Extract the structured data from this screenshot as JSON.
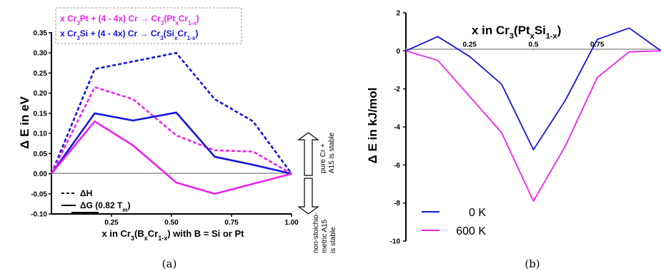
{
  "chart_data": [
    {
      "type": "line",
      "panel": "(a)",
      "ylabel": "Δ E in eV",
      "xlabel": "x in Cr3(BxCr1-x) with B = Si or Pt",
      "xlim": [
        0,
        1
      ],
      "ylim": [
        -0.1,
        0.35
      ],
      "x_ticks": [
        "0.25",
        "0.50",
        "0.75",
        "1.00"
      ],
      "y_ticks": [
        "-0.10",
        "-0.05",
        "0.00",
        "0.05",
        "0.10",
        "0.15",
        "0.20",
        "0.25",
        "0.30",
        "0.35"
      ],
      "legend_box": [
        {
          "text": "x Cr3Pt + (4 - 4x) Cr → Cr3(PtxCr1-x)",
          "color": "#ee22ee"
        },
        {
          "text": "x Cr3Si + (4 - 4x) Cr → Cr3(SixCr1-x)",
          "color": "#1515dd"
        }
      ],
      "legend_style": [
        {
          "text": "ΔH",
          "style": "dashed"
        },
        {
          "text": "ΔG (0.82 Tm)",
          "style": "solid"
        }
      ],
      "side_label_top": [
        "pure Cr +",
        "A15 is stable"
      ],
      "side_label_bottom": [
        "non-stoichio-",
        "metric A15",
        "is stable"
      ],
      "series": [
        {
          "color": "#1515dd",
          "style": "dashed",
          "x": [
            0,
            0.18,
            0.52,
            0.68,
            0.84,
            1.0
          ],
          "y": [
            0,
            0.26,
            0.3,
            0.185,
            0.13,
            0
          ]
        },
        {
          "color": "#ee22ee",
          "style": "dashed",
          "x": [
            0,
            0.18,
            0.34,
            0.52,
            0.68,
            0.84,
            1.0
          ],
          "y": [
            0,
            0.215,
            0.185,
            0.095,
            0.058,
            0.055,
            0
          ]
        },
        {
          "color": "#1515dd",
          "style": "solid",
          "x": [
            0,
            0.18,
            0.34,
            0.52,
            0.68,
            0.84,
            1.0
          ],
          "y": [
            0,
            0.15,
            0.132,
            0.152,
            0.042,
            0.022,
            0
          ]
        },
        {
          "color": "#ee22ee",
          "style": "solid",
          "x": [
            0,
            0.18,
            0.34,
            0.52,
            0.68,
            1.0
          ],
          "y": [
            0,
            0.13,
            0.07,
            -0.022,
            -0.05,
            0
          ]
        }
      ]
    },
    {
      "type": "line",
      "panel": "(b)",
      "ylabel": "Δ E in kJ/mol",
      "title": "x in Cr3(PtxSi1-x)",
      "xlim": [
        0,
        1
      ],
      "ylim": [
        -10,
        2
      ],
      "x_ticks": [
        "0.25",
        "0.5",
        "0.75"
      ],
      "y_ticks": [
        "2",
        "0",
        "-2",
        "-4",
        "-6",
        "-8",
        "-10"
      ],
      "series": [
        {
          "name": "0 K",
          "color": "#1515dd",
          "x": [
            0,
            0.125,
            0.25,
            0.375,
            0.5,
            0.625,
            0.75,
            0.875,
            1.0
          ],
          "y": [
            0,
            0.75,
            -0.3,
            -1.75,
            -5.2,
            -2.6,
            0.6,
            1.2,
            0
          ]
        },
        {
          "name": "600 K",
          "color": "#ee22ee",
          "x": [
            0,
            0.125,
            0.25,
            0.375,
            0.5,
            0.625,
            0.75,
            0.875,
            1.0
          ],
          "y": [
            0,
            -0.5,
            -2.4,
            -4.3,
            -7.9,
            -5.0,
            -1.4,
            -0.05,
            0
          ]
        }
      ]
    }
  ]
}
